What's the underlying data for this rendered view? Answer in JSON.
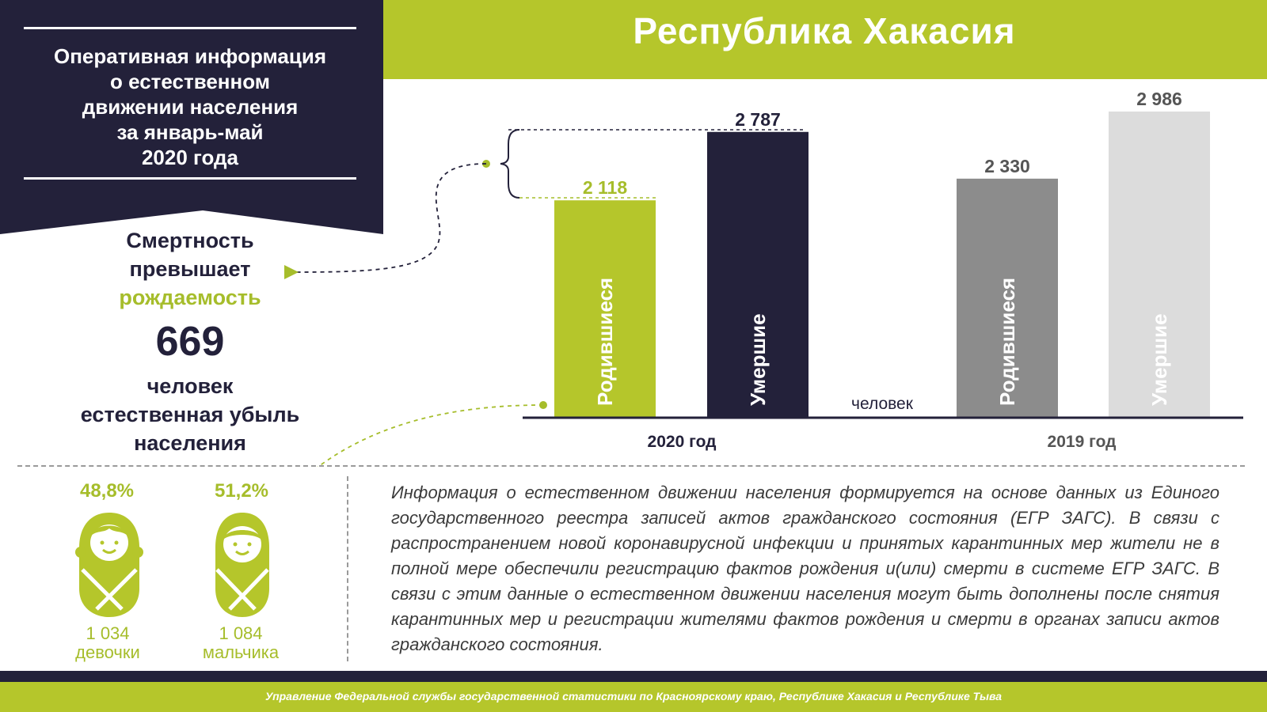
{
  "header": {
    "title": "Республика Хакасия",
    "info_lines": [
      "Оперативная информация",
      "о естественном",
      "движении населения",
      "за январь-май",
      "2020 года"
    ]
  },
  "summary": {
    "line1": "Смертность",
    "line2": "превышает",
    "line3": "рождаемость",
    "number": "669",
    "caption_lines": [
      "человек",
      "естественная убыль",
      "населения"
    ]
  },
  "gender": {
    "girls": {
      "percent": "48,8%",
      "count": "1 034",
      "label": "девочки"
    },
    "boys": {
      "percent": "51,2%",
      "count": "1 084",
      "label": "мальчика"
    }
  },
  "note": "Информация о естественном движении населения формируется на основе данных из Единого государственного реестра записей актов гражданского состояния (ЕГР ЗАГС). В связи с распространением новой коронавирусной инфекции и принятых карантинных мер жители не в полной мере обеспечили регистрацию фактов рождения и(или) смерти в системе ЕГР ЗАГС. В связи с этим данные о естественном движении населения могут быть дополнены после снятия карантинных мер и регистрации жителями фактов рождения и смерти в органах записи актов гражданского состояния.",
  "footer": "Управление Федеральной службы государственной статистики по Красноярскому краю, Республике Хакасия и Республике Тыва",
  "colors": {
    "green": "#b5c62b",
    "dark": "#23213a",
    "gray": "#8c8c8c",
    "light_gray": "#dcdcdc"
  },
  "chart_data": {
    "type": "bar",
    "unit_label": "человек",
    "groups": [
      {
        "label": "2020 год",
        "bars": [
          {
            "name": "Родившиеся",
            "value": 2118,
            "value_label": "2 118",
            "color": "#b5c62b",
            "label_color": "#a6bd2b"
          },
          {
            "name": "Умершие",
            "value": 2787,
            "value_label": "2 787",
            "color": "#23213a",
            "label_color": "#23213a"
          }
        ]
      },
      {
        "label": "2019 год",
        "bars": [
          {
            "name": "Родившиеся",
            "value": 2330,
            "value_label": "2 330",
            "color": "#8c8c8c",
            "label_color": "#555555"
          },
          {
            "name": "Умершие",
            "value": 2986,
            "value_label": "2 986",
            "color": "#dcdcdc",
            "label_color": "#555555"
          }
        ]
      }
    ]
  }
}
